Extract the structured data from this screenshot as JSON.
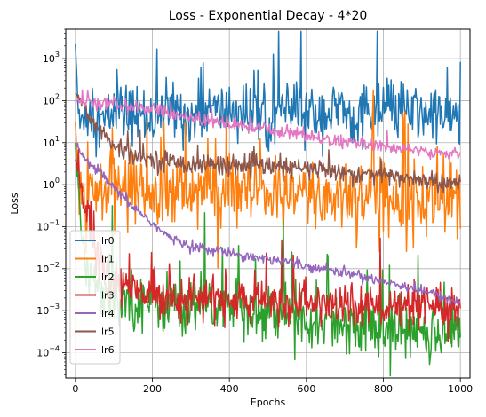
{
  "chart_data": {
    "type": "line",
    "title": "Loss - Exponential Decay - 4*20",
    "xlabel": "Epochs",
    "ylabel": "Loss",
    "yscale": "log",
    "xlim": [
      -25,
      1025
    ],
    "ylim": [
      2.5e-05,
      5000
    ],
    "xticks": [
      0,
      200,
      400,
      600,
      800,
      1000
    ],
    "yticks": [
      {
        "value": 0.0001,
        "mantissa": "10",
        "exp": "−4"
      },
      {
        "value": 0.001,
        "mantissa": "10",
        "exp": "−3"
      },
      {
        "value": 0.01,
        "mantissa": "10",
        "exp": "−2"
      },
      {
        "value": 0.1,
        "mantissa": "10",
        "exp": "−1"
      },
      {
        "value": 1,
        "mantissa": "10",
        "exp": "0"
      },
      {
        "value": 10,
        "mantissa": "10",
        "exp": "1"
      },
      {
        "value": 100,
        "mantissa": "10",
        "exp": "2"
      },
      {
        "value": 1000,
        "mantissa": "10",
        "exp": "3"
      }
    ],
    "grid": true,
    "legend_position": "lower-left",
    "series": [
      {
        "name": "lr0",
        "color": "#1f77b4",
        "x": [
          0,
          10,
          25,
          50,
          75,
          100,
          150,
          200,
          250,
          300,
          350,
          400,
          450,
          500,
          550,
          600,
          650,
          700,
          750,
          800,
          850,
          900,
          950,
          1000
        ],
        "y": [
          2200,
          20,
          60,
          40,
          30,
          60,
          50,
          40,
          60,
          40,
          50,
          60,
          50,
          40,
          60,
          45,
          50,
          55,
          40,
          50,
          60,
          45,
          50,
          35
        ]
      },
      {
        "name": "lr1",
        "color": "#ff7f0e",
        "x": [
          0,
          10,
          25,
          50,
          75,
          100,
          150,
          200,
          250,
          300,
          350,
          400,
          450,
          500,
          550,
          600,
          650,
          700,
          750,
          800,
          850,
          900,
          950,
          1000
        ],
        "y": [
          30,
          0.5,
          0.2,
          0.6,
          0.7,
          1.0,
          0.8,
          0.7,
          0.6,
          0.7,
          0.8,
          0.5,
          0.6,
          0.7,
          0.4,
          0.6,
          0.5,
          0.6,
          0.6,
          0.5,
          0.6,
          0.4,
          0.5,
          0.4
        ]
      },
      {
        "name": "lr2",
        "color": "#2ca02c",
        "x": [
          0,
          10,
          25,
          50,
          75,
          100,
          150,
          200,
          250,
          300,
          350,
          400,
          450,
          500,
          550,
          600,
          650,
          700,
          750,
          800,
          850,
          900,
          950,
          1000
        ],
        "y": [
          10,
          0.1,
          0.02,
          0.005,
          0.003,
          0.002,
          0.002,
          0.0015,
          0.0015,
          0.0015,
          0.0012,
          0.0012,
          0.001,
          0.001,
          0.0008,
          0.0007,
          0.0006,
          0.0005,
          0.0004,
          0.0004,
          0.0003,
          0.0003,
          0.0003,
          0.00035
        ]
      },
      {
        "name": "lr3",
        "color": "#d62728",
        "x": [
          0,
          10,
          25,
          50,
          75,
          100,
          150,
          200,
          250,
          300,
          350,
          400,
          450,
          500,
          550,
          600,
          650,
          700,
          750,
          800,
          850,
          900,
          950,
          1000
        ],
        "y": [
          4,
          2,
          0.3,
          0.03,
          0.01,
          0.005,
          0.003,
          0.0025,
          0.0022,
          0.002,
          0.002,
          0.0018,
          0.0017,
          0.0016,
          0.0015,
          0.0015,
          0.0014,
          0.0013,
          0.0013,
          0.0012,
          0.0012,
          0.0011,
          0.0011,
          0.001
        ]
      },
      {
        "name": "lr4",
        "color": "#9467bd",
        "x": [
          0,
          10,
          25,
          50,
          75,
          100,
          150,
          200,
          250,
          300,
          350,
          400,
          450,
          500,
          550,
          600,
          650,
          700,
          750,
          800,
          850,
          900,
          950,
          1000
        ],
        "y": [
          10,
          6,
          4,
          2.5,
          1.5,
          0.8,
          0.3,
          0.12,
          0.05,
          0.035,
          0.028,
          0.024,
          0.02,
          0.017,
          0.015,
          0.012,
          0.01,
          0.008,
          0.0065,
          0.005,
          0.004,
          0.003,
          0.0022,
          0.0015
        ]
      },
      {
        "name": "lr5",
        "color": "#8c564b",
        "x": [
          0,
          10,
          25,
          50,
          75,
          100,
          150,
          200,
          250,
          300,
          350,
          400,
          450,
          500,
          550,
          600,
          650,
          700,
          750,
          800,
          850,
          900,
          950,
          1000
        ],
        "y": [
          150,
          120,
          60,
          30,
          15,
          8,
          5,
          4,
          3.5,
          3,
          3,
          3,
          2.8,
          2.7,
          2.5,
          2.4,
          2.2,
          2,
          1.8,
          1.6,
          1.5,
          1.3,
          1.1,
          1.0
        ]
      },
      {
        "name": "lr6",
        "color": "#e377c2",
        "x": [
          0,
          10,
          25,
          50,
          75,
          100,
          150,
          200,
          250,
          300,
          350,
          400,
          450,
          500,
          550,
          600,
          650,
          700,
          750,
          800,
          850,
          900,
          950,
          1000
        ],
        "y": [
          100,
          95,
          92,
          88,
          85,
          80,
          70,
          60,
          50,
          40,
          32,
          27,
          24,
          21,
          18,
          15,
          12,
          10,
          9,
          8,
          7,
          6.5,
          6,
          5.5
        ]
      }
    ]
  }
}
